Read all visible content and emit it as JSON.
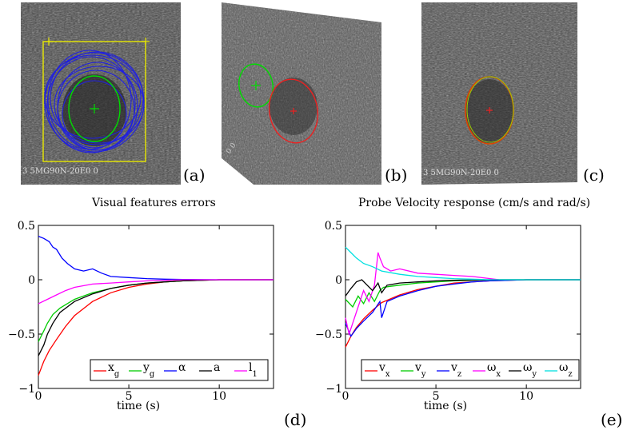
{
  "panels": {
    "a": {
      "label": "(a)"
    },
    "b": {
      "label": "(b)"
    },
    "c": {
      "label": "(c)"
    },
    "d": {
      "label": "(d)"
    },
    "e": {
      "label": "(e)"
    }
  },
  "images": {
    "a": {
      "imprint": "3 5MG90N-20E0 0"
    },
    "b": {
      "imprint": "0 0"
    },
    "c": {
      "imprint": "3 5MG90N-20E0 0"
    }
  },
  "colors": {
    "x_g": "#ff0000",
    "y_g": "#00cc00",
    "alpha": "#0000ff",
    "a": "#000000",
    "l1": "#ff00ff",
    "v_x": "#ff0000",
    "v_y": "#00cc00",
    "v_z": "#0000ff",
    "w_x": "#ff00ff",
    "w_y": "#000000",
    "w_z": "#00e0e0",
    "yellow_box": "#e8e800"
  },
  "chart_data": [
    {
      "type": "line",
      "title": "Visual features errors",
      "xlabel": "time (s)",
      "ylabel": "",
      "xlim": [
        0,
        13
      ],
      "ylim": [
        -1,
        0.5
      ],
      "xticks": [
        0,
        5,
        10
      ],
      "yticks": [
        -1,
        -0.5,
        0,
        0.5
      ],
      "xtick_labels": [
        "0",
        "5",
        "10"
      ],
      "ytick_labels": [
        "−1",
        "−0.5",
        "0",
        "0.5"
      ],
      "legend_position": "bottom-right",
      "series": [
        {
          "name": "x_g",
          "legend_main": "x",
          "legend_sub": "g",
          "color": "#ff0000",
          "x": [
            0,
            0.3,
            0.6,
            1,
            1.5,
            2,
            3,
            4,
            5,
            6,
            7,
            8,
            10,
            13
          ],
          "y": [
            -0.88,
            -0.75,
            -0.65,
            -0.55,
            -0.43,
            -0.33,
            -0.2,
            -0.12,
            -0.07,
            -0.04,
            -0.02,
            -0.01,
            0,
            0
          ]
        },
        {
          "name": "y_g",
          "legend_main": "y",
          "legend_sub": "g",
          "color": "#00cc00",
          "x": [
            0,
            0.3,
            0.5,
            0.8,
            1.2,
            2,
            3,
            4,
            5,
            6,
            7,
            8,
            10,
            13
          ],
          "y": [
            -0.57,
            -0.47,
            -0.4,
            -0.32,
            -0.26,
            -0.18,
            -0.12,
            -0.08,
            -0.05,
            -0.03,
            -0.02,
            -0.01,
            0,
            0
          ]
        },
        {
          "name": "alpha",
          "legend_main": "α",
          "legend_sub": "",
          "color": "#0000ff",
          "x": [
            0,
            0.3,
            0.6,
            0.8,
            1.0,
            1.3,
            1.6,
            2,
            2.5,
            3,
            3.5,
            4,
            5,
            6,
            7,
            8,
            10,
            13
          ],
          "y": [
            0.4,
            0.38,
            0.35,
            0.3,
            0.28,
            0.2,
            0.15,
            0.1,
            0.08,
            0.1,
            0.06,
            0.03,
            0.02,
            0.01,
            0.005,
            0.002,
            0,
            0
          ]
        },
        {
          "name": "a",
          "legend_main": "a",
          "legend_sub": "",
          "color": "#000000",
          "x": [
            0,
            0.3,
            0.5,
            0.8,
            1.2,
            1.6,
            2,
            3,
            4,
            5,
            6,
            7,
            8,
            10,
            13
          ],
          "y": [
            -0.7,
            -0.6,
            -0.5,
            -0.4,
            -0.3,
            -0.25,
            -0.2,
            -0.13,
            -0.08,
            -0.05,
            -0.03,
            -0.02,
            -0.01,
            0,
            0
          ]
        },
        {
          "name": "l1",
          "legend_main": "l",
          "legend_sub": "1",
          "color": "#ff00ff",
          "x": [
            0,
            0.5,
            1,
            1.5,
            2,
            3,
            4,
            5,
            6,
            7,
            8,
            10,
            13
          ],
          "y": [
            -0.22,
            -0.18,
            -0.14,
            -0.1,
            -0.07,
            -0.04,
            -0.03,
            -0.02,
            -0.01,
            -0.005,
            0,
            0,
            0
          ]
        }
      ]
    },
    {
      "type": "line",
      "title": "Probe Velocity response (cm/s and rad/s)",
      "xlabel": "time (s)",
      "ylabel": "",
      "xlim": [
        0,
        13
      ],
      "ylim": [
        -1,
        0.5
      ],
      "xticks": [
        0,
        5,
        10
      ],
      "yticks": [
        -1,
        -0.5,
        0,
        0.5
      ],
      "xtick_labels": [
        "0",
        "5",
        "10"
      ],
      "ytick_labels": [
        "−1",
        "−0.5",
        "0",
        "0.5"
      ],
      "legend_position": "bottom",
      "series": [
        {
          "name": "v_x",
          "legend_main": "v",
          "legend_sub": "x",
          "color": "#ff0000",
          "x": [
            0,
            0.3,
            0.6,
            1,
            1.5,
            2,
            3,
            4,
            5,
            6,
            7,
            8,
            10,
            13
          ],
          "y": [
            -0.62,
            -0.52,
            -0.44,
            -0.36,
            -0.28,
            -0.21,
            -0.14,
            -0.09,
            -0.06,
            -0.03,
            -0.02,
            -0.01,
            0,
            0
          ]
        },
        {
          "name": "v_y",
          "legend_main": "v",
          "legend_sub": "y",
          "color": "#00cc00",
          "x": [
            0,
            0.4,
            0.7,
            1,
            1.3,
            1.6,
            1.9,
            2.1,
            2.5,
            3,
            4,
            5,
            6,
            8,
            10,
            13
          ],
          "y": [
            -0.18,
            -0.25,
            -0.15,
            -0.22,
            -0.12,
            -0.2,
            -0.1,
            -0.07,
            -0.06,
            -0.05,
            -0.03,
            -0.02,
            -0.01,
            0,
            0,
            0
          ]
        },
        {
          "name": "v_z",
          "legend_main": "v",
          "legend_sub": "z",
          "color": "#0000ff",
          "x": [
            0,
            0.3,
            0.6,
            1,
            1.5,
            1.9,
            2.0,
            2.3,
            3,
            4,
            5,
            6,
            7,
            8,
            10,
            13
          ],
          "y": [
            -0.4,
            -0.52,
            -0.45,
            -0.38,
            -0.3,
            -0.2,
            -0.35,
            -0.2,
            -0.15,
            -0.1,
            -0.06,
            -0.04,
            -0.02,
            -0.01,
            0,
            0
          ]
        },
        {
          "name": "w_x",
          "legend_main": "ω",
          "legend_sub": "x",
          "color": "#ff00ff",
          "x": [
            0,
            0.2,
            0.4,
            0.7,
            1,
            1.3,
            1.6,
            1.8,
            1.9,
            2.1,
            2.5,
            3,
            4,
            5,
            6,
            7,
            8,
            8.5
          ],
          "y": [
            -0.35,
            -0.5,
            -0.4,
            -0.25,
            -0.1,
            -0.2,
            -0.05,
            0.25,
            0.2,
            0.12,
            0.08,
            0.1,
            0.06,
            0.05,
            0.04,
            0.03,
            0.01,
            0
          ]
        },
        {
          "name": "w_y",
          "legend_main": "ω",
          "legend_sub": "y",
          "color": "#000000",
          "x": [
            0,
            0.3,
            0.6,
            0.9,
            1.2,
            1.5,
            1.8,
            2.0,
            2.3,
            3,
            4,
            5,
            6,
            8,
            10,
            13
          ],
          "y": [
            -0.15,
            -0.08,
            -0.02,
            0.0,
            -0.05,
            -0.1,
            -0.03,
            -0.12,
            -0.05,
            -0.03,
            -0.02,
            -0.01,
            -0.005,
            0,
            0,
            0
          ]
        },
        {
          "name": "w_z",
          "legend_main": "ω",
          "legend_sub": "z",
          "color": "#00e0e0",
          "x": [
            0,
            0.3,
            0.6,
            1,
            1.5,
            2,
            3,
            4,
            5,
            6,
            7,
            8,
            10,
            13
          ],
          "y": [
            0.3,
            0.25,
            0.2,
            0.15,
            0.12,
            0.08,
            0.05,
            0.03,
            0.02,
            0.01,
            0.005,
            0,
            0,
            0
          ]
        }
      ]
    }
  ]
}
